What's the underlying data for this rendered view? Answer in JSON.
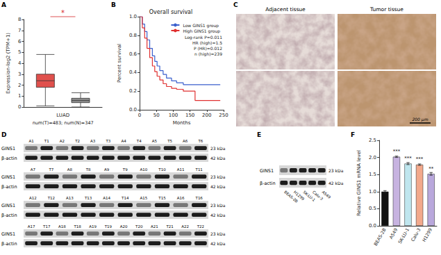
{
  "figure": {
    "panel_labels": [
      "A",
      "B",
      "C",
      "D",
      "E",
      "F"
    ],
    "C": {
      "column_titles": [
        "Adjacent tissue",
        "Tumor tissue"
      ],
      "scale_bar": "200 μm"
    },
    "D": {
      "lane_rows": [
        [
          "A1",
          "T1",
          "A2",
          "T2",
          "A3",
          "T3",
          "A4",
          "T4",
          "A5",
          "T5",
          "A6",
          "T6"
        ],
        [
          "A7",
          "T7",
          "A8",
          "T8",
          "A9",
          "T9",
          "A10",
          "T10",
          "A11",
          "T11"
        ],
        [
          "A12",
          "T12",
          "A13",
          "T13",
          "A14",
          "T14",
          "A15",
          "T15",
          "A16",
          "T16"
        ],
        [
          "A17",
          "T17",
          "A18",
          "T18",
          "A19",
          "T19",
          "A20",
          "T20",
          "A21",
          "T21",
          "A22",
          "T22"
        ]
      ],
      "bands": [
        {
          "name": "GINS1",
          "size": "23 kDa"
        },
        {
          "name": "β-actin",
          "size": "42 kDa"
        }
      ]
    },
    "E": {
      "lanes": [
        "BEAS-2B",
        "H1299",
        "SK-LU-1",
        "Calu-3",
        "A549"
      ],
      "bands": [
        {
          "name": "GINS1",
          "size": "23 kDa"
        },
        {
          "name": "β-actin",
          "size": "42 kDa"
        }
      ]
    }
  },
  "chart_data": [
    {
      "type": "boxplot",
      "categories": [
        "LUAD"
      ],
      "x_label": "num(T)=483; num(N)=347",
      "y_label": "Expression-log2 (TPM+1)",
      "ylim": [
        0,
        8
      ],
      "yticks": [
        0,
        1,
        2,
        3,
        4,
        5,
        6,
        7,
        8
      ],
      "series": [
        {
          "color": "#e0504c",
          "values": [
            [
              0.1,
              1.8,
              2.4,
              3.0,
              4.8
            ]
          ]
        },
        {
          "color": "#8c8c8c",
          "values": [
            [
              0.0,
              0.4,
              0.6,
              0.8,
              1.3
            ]
          ]
        }
      ],
      "annotations": [
        "*"
      ]
    },
    {
      "type": "line",
      "title": "Overall survival",
      "x_label": "Months",
      "y_label": "Percent survival",
      "xlim": [
        0,
        250
      ],
      "xticks": [
        0,
        50,
        100,
        150,
        200,
        250
      ],
      "ylim": [
        0,
        1
      ],
      "yticks": [
        {
          "value": 0,
          "label": "0.0"
        },
        0.2,
        0.4,
        0.6,
        0.8,
        {
          "value": 1,
          "label": "1.0"
        }
      ],
      "legend": "top-right",
      "line_style": "step",
      "series": [
        {
          "name": "Low GINS1 group",
          "color": "#3a5fcd",
          "x": [
            0,
            8,
            15,
            22,
            30,
            38,
            45,
            52,
            60,
            70,
            80,
            95,
            110,
            130,
            150,
            240
          ],
          "values": [
            1,
            0.92,
            0.84,
            0.75,
            0.66,
            0.58,
            0.52,
            0.47,
            0.42,
            0.38,
            0.34,
            0.31,
            0.29,
            0.27,
            0.27,
            0.27
          ]
        },
        {
          "name": "High GINS1 group",
          "color": "#e03030",
          "x": [
            0,
            8,
            15,
            22,
            30,
            38,
            45,
            52,
            60,
            70,
            80,
            95,
            110,
            130,
            150,
            165,
            240
          ],
          "values": [
            1,
            0.88,
            0.77,
            0.66,
            0.56,
            0.47,
            0.41,
            0.36,
            0.32,
            0.28,
            0.25,
            0.23,
            0.22,
            0.2,
            0.2,
            0.1,
            0.1
          ]
        }
      ],
      "annotations": [
        "Log-rank P=0.011",
        "HR (high)=1.5",
        "P (HR)=0.012",
        "n (high)=239"
      ]
    },
    {
      "type": "bar",
      "categories": [
        "BEAS-2B",
        "A549",
        "SK-LU-1",
        "Calu-3",
        "H1299"
      ],
      "values": [
        1.0,
        2.02,
        1.82,
        1.79,
        1.52
      ],
      "errors": [
        0.03,
        0.02,
        0.03,
        0.02,
        0.04
      ],
      "colors": [
        "#111111",
        "#c7b3e0",
        "#bfe6ee",
        "#f3a98c",
        "#b9a8dc"
      ],
      "y_label": "Relative GINS1 mRNA level",
      "ylim": [
        0,
        2.5
      ],
      "yticks": [
        {
          "value": 0,
          "label": "0.0"
        },
        0.5,
        {
          "value": 1,
          "label": "1.0"
        },
        1.5,
        {
          "value": 2,
          "label": "2.0"
        },
        2.5
      ],
      "annotations": [
        null,
        "***",
        "***",
        "***",
        "**"
      ]
    }
  ]
}
